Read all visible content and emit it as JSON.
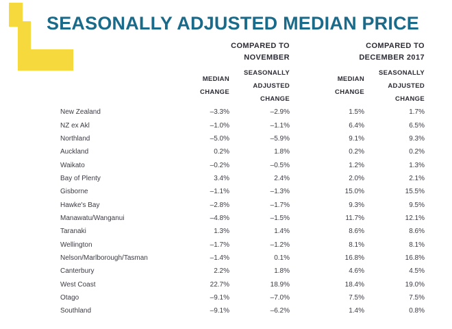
{
  "page": {
    "title": "SEASONALLY ADJUSTED MEDIAN PRICE"
  },
  "colors": {
    "title_teal": "#1A6A89",
    "header_navy": "#2B2B35",
    "body_text": "#3A3A44",
    "logo_yellow": "#F5D93D"
  },
  "logo": {
    "name": "yellow-L-logo"
  },
  "table": {
    "groups": [
      {
        "label_line1": "COMPARED TO",
        "label_line2": "NOVEMBER"
      },
      {
        "label_line1": "COMPARED TO",
        "label_line2": "DECEMBER 2017"
      }
    ],
    "subheaders": {
      "median_line1": "MEDIAN",
      "median_line2": "CHANGE",
      "adjusted_line1": "SEASONALLY",
      "adjusted_line2": "ADJUSTED",
      "adjusted_line3": "CHANGE"
    },
    "column_keys": [
      "nov_median_change",
      "nov_seasonally_adjusted_change",
      "dec2017_median_change",
      "dec2017_seasonally_adjusted_change"
    ],
    "rows": [
      {
        "region": "New Zealand",
        "values": [
          "–3.3%",
          "–2.9%",
          "1.5%",
          "1.7%"
        ]
      },
      {
        "region": "NZ ex Akl",
        "values": [
          "–1.0%",
          "–1.1%",
          "6.4%",
          "6.5%"
        ]
      },
      {
        "region": "Northland",
        "values": [
          "–5.0%",
          "–5.9%",
          "9.1%",
          "9.3%"
        ]
      },
      {
        "region": "Auckland",
        "values": [
          "0.2%",
          "1.8%",
          "0.2%",
          "0.2%"
        ]
      },
      {
        "region": "Waikato",
        "values": [
          "–0.2%",
          "–0.5%",
          "1.2%",
          "1.3%"
        ]
      },
      {
        "region": "Bay of Plenty",
        "values": [
          "3.4%",
          "2.4%",
          "2.0%",
          "2.1%"
        ]
      },
      {
        "region": "Gisborne",
        "values": [
          "–1.1%",
          "–1.3%",
          "15.0%",
          "15.5%"
        ]
      },
      {
        "region": "Hawke's Bay",
        "values": [
          "–2.8%",
          "–1.7%",
          "9.3%",
          "9.5%"
        ]
      },
      {
        "region": "Manawatu/Wanganui",
        "values": [
          "–4.8%",
          "–1.5%",
          "11.7%",
          "12.1%"
        ]
      },
      {
        "region": "Taranaki",
        "values": [
          "1.3%",
          "1.4%",
          "8.6%",
          "8.6%"
        ]
      },
      {
        "region": "Wellington",
        "values": [
          "–1.7%",
          "–1.2%",
          "8.1%",
          "8.1%"
        ]
      },
      {
        "region": "Nelson/Marlborough/Tasman",
        "values": [
          "–1.4%",
          "0.1%",
          "16.8%",
          "16.8%"
        ]
      },
      {
        "region": "Canterbury",
        "values": [
          "2.2%",
          "1.8%",
          "4.6%",
          "4.5%"
        ]
      },
      {
        "region": "West Coast",
        "values": [
          "22.7%",
          "18.9%",
          "18.4%",
          "19.0%"
        ]
      },
      {
        "region": "Otago",
        "values": [
          "–9.1%",
          "–7.0%",
          "7.5%",
          "7.5%"
        ]
      },
      {
        "region": "Southland",
        "values": [
          "–9.1%",
          "–6.2%",
          "1.4%",
          "0.8%"
        ]
      }
    ]
  }
}
